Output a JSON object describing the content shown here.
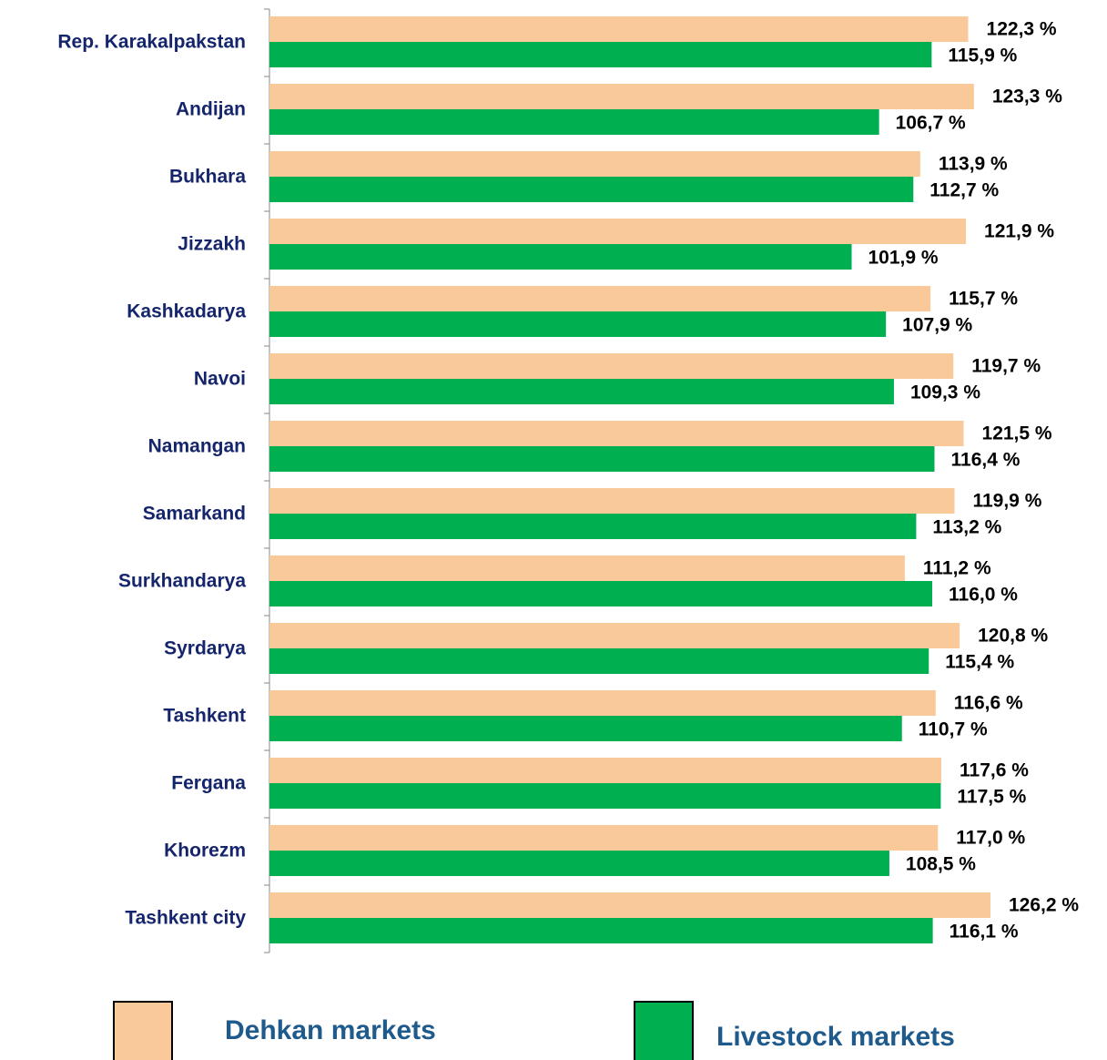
{
  "chart_data": {
    "type": "bar",
    "orientation": "horizontal",
    "categories": [
      "Rep. Karakalpakstan",
      "Andijan",
      "Bukhara",
      "Jizzakh",
      "Kashkadarya",
      "Navoi",
      "Namangan",
      "Samarkand",
      "Surkhandarya",
      "Syrdarya",
      "Tashkent",
      "Fergana",
      "Khorezm",
      "Tashkent city"
    ],
    "series": [
      {
        "name": "Dehkan markets",
        "color": "#f9c99a",
        "values": [
          122.3,
          123.3,
          113.9,
          121.9,
          115.7,
          119.7,
          121.5,
          119.9,
          111.2,
          120.8,
          116.6,
          117.6,
          117.0,
          126.2
        ],
        "value_labels": [
          "122,3 %",
          "123,3 %",
          "113,9 %",
          "121,9 %",
          "115,7 %",
          "119,7 %",
          "121,5 %",
          "119,9 %",
          "111,2 %",
          "120,8 %",
          "116,6 %",
          "117,6 %",
          "117,0 %",
          "126,2 %"
        ]
      },
      {
        "name": "Livestock markets",
        "color": "#00b050",
        "values": [
          115.9,
          106.7,
          112.7,
          101.9,
          107.9,
          109.3,
          116.4,
          113.2,
          116.0,
          115.4,
          110.7,
          117.5,
          108.5,
          116.1
        ],
        "value_labels": [
          "115,9 %",
          "106,7 %",
          "112,7 %",
          "101,9 %",
          "107,9 %",
          "109,3 %",
          "116,4 %",
          "113,2 %",
          "116,0 %",
          "115,4 %",
          "110,7 %",
          "117,5 %",
          "108,5 %",
          "116,1 %"
        ]
      }
    ],
    "xlim": [
      0,
      145
    ],
    "grid": false,
    "legend": "bottom"
  }
}
